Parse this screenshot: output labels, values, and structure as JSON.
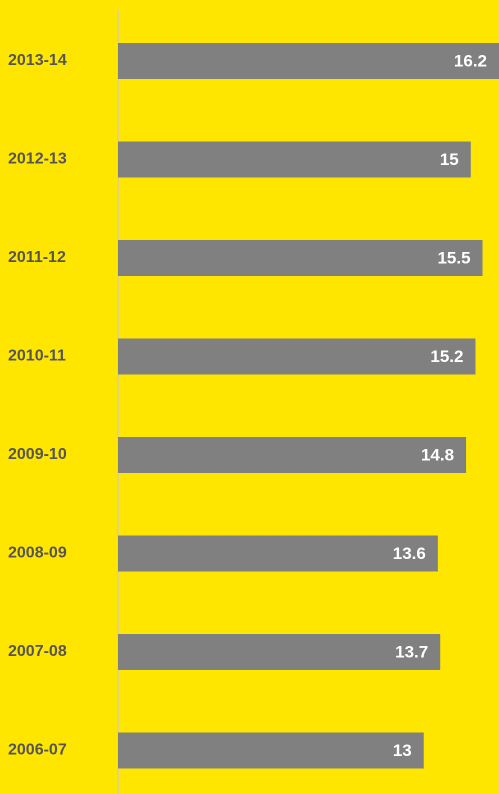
{
  "chart_data": {
    "type": "barh",
    "categories": [
      "2013-14",
      "2012-13",
      "2011-12",
      "2010-11",
      "2009-10",
      "2008-09",
      "2007-08",
      "2006-07"
    ],
    "values": [
      16.2,
      15,
      15.5,
      15.2,
      14.8,
      13.6,
      13.7,
      13
    ],
    "color": "#808080",
    "background": "#ffe600"
  }
}
